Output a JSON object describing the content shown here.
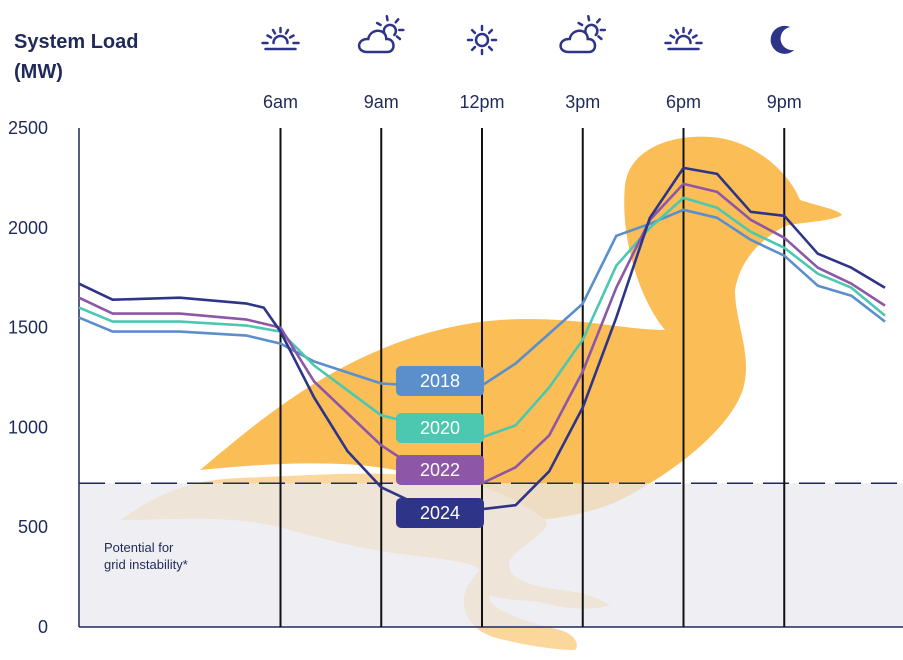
{
  "chart_data": {
    "type": "line",
    "ylabel": "System Load (MW)",
    "ylabel_lines": [
      "System Load",
      "(MW)"
    ],
    "x_tick_labels": [
      "6am",
      "9am",
      "12pm",
      "3pm",
      "6pm",
      "9pm"
    ],
    "x_tick_hours": [
      6,
      9,
      12,
      15,
      18,
      21
    ],
    "weather_icons": [
      "sunrise-icon",
      "partly-cloudy-icon",
      "sun-icon",
      "partly-cloudy-icon",
      "sunset-icon",
      "moon-icon"
    ],
    "ylim": [
      0,
      2500
    ],
    "y_ticks": [
      0,
      500,
      1000,
      1500,
      2000,
      2500
    ],
    "xlim": [
      0,
      24
    ],
    "threshold": {
      "value": 720,
      "label": [
        "Potential for",
        "grid instability*"
      ]
    },
    "series": [
      {
        "name": "2018",
        "color": "#5b8fcc",
        "x": [
          0,
          1,
          3,
          5,
          6,
          7,
          9,
          10,
          11,
          12,
          13,
          14,
          15,
          16,
          17,
          18,
          19,
          20,
          21,
          22,
          23,
          24
        ],
        "y": [
          1550,
          1480,
          1480,
          1460,
          1420,
          1330,
          1220,
          1210,
          1210,
          1210,
          1320,
          1470,
          1620,
          1960,
          2020,
          2090,
          2050,
          1940,
          1860,
          1710,
          1660,
          1530
        ]
      },
      {
        "name": "2020",
        "color": "#4cc7b0",
        "x": [
          0,
          1,
          3,
          5,
          6,
          7,
          9,
          10,
          11,
          12,
          13,
          14,
          15,
          16,
          17,
          18,
          19,
          20,
          21,
          22,
          23,
          24
        ],
        "y": [
          1600,
          1530,
          1530,
          1510,
          1480,
          1310,
          1060,
          1020,
          960,
          950,
          1010,
          1200,
          1440,
          1810,
          2000,
          2150,
          2100,
          1980,
          1900,
          1770,
          1700,
          1560
        ]
      },
      {
        "name": "2022",
        "color": "#8e56a7",
        "x": [
          0,
          1,
          3,
          5,
          6,
          7,
          9,
          10,
          11,
          12,
          13,
          14,
          15,
          16,
          17,
          18,
          19,
          20,
          21,
          22,
          23,
          24
        ],
        "y": [
          1650,
          1570,
          1570,
          1540,
          1500,
          1230,
          910,
          800,
          730,
          720,
          800,
          960,
          1280,
          1700,
          2040,
          2220,
          2180,
          2040,
          1950,
          1800,
          1720,
          1610
        ]
      },
      {
        "name": "2024",
        "color": "#2e3588",
        "x": [
          0,
          1,
          3,
          5,
          5.5,
          6,
          7,
          8,
          9,
          10,
          11,
          12,
          13,
          14,
          15,
          16,
          17,
          18,
          19,
          20,
          21,
          22,
          23,
          24
        ],
        "y": [
          1720,
          1640,
          1650,
          1620,
          1600,
          1480,
          1150,
          880,
          700,
          620,
          600,
          590,
          610,
          780,
          1100,
          1550,
          2050,
          2300,
          2270,
          2080,
          2060,
          1870,
          1800,
          1700
        ]
      }
    ],
    "legend": "center labels on curves"
  }
}
